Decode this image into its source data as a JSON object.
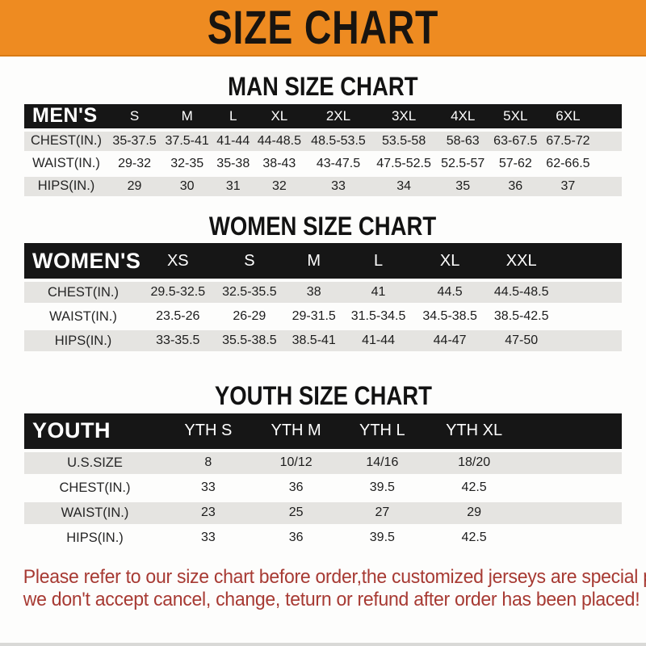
{
  "banner": {
    "title": "SIZE CHART"
  },
  "colors": {
    "banner_orange": "#ee8b21",
    "table_header_black": "#161616",
    "row_stripe_gray": "#e5e4e1",
    "footer_red": "#a73a33"
  },
  "sections": [
    {
      "heading": "MAN SIZE CHART",
      "table": {
        "label": "MEN'S",
        "columns": [
          "S",
          "M",
          "L",
          "XL",
          "2XL",
          "3XL",
          "4XL",
          "5XL",
          "6XL"
        ],
        "rows": [
          {
            "label": "CHEST(IN.)",
            "values": [
              "35-37.5",
              "37.5-41",
              "41-44",
              "44-48.5",
              "48.5-53.5",
              "53.5-58",
              "58-63",
              "63-67.5",
              "67.5-72"
            ]
          },
          {
            "label": "WAIST(IN.)",
            "values": [
              "29-32",
              "32-35",
              "35-38",
              "38-43",
              "43-47.5",
              "47.5-52.5",
              "52.5-57",
              "57-62",
              "62-66.5"
            ]
          },
          {
            "label": "HIPS(IN.)",
            "values": [
              "29",
              "30",
              "31",
              "32",
              "33",
              "34",
              "35",
              "36",
              "37"
            ]
          }
        ]
      }
    },
    {
      "heading": "WOMEN SIZE CHART",
      "table": {
        "label": "WOMEN'S",
        "columns": [
          "XS",
          "S",
          "M",
          "L",
          "XL",
          "XXL"
        ],
        "rows": [
          {
            "label": "CHEST(IN.)",
            "values": [
              "29.5-32.5",
              "32.5-35.5",
              "38",
              "41",
              "44.5",
              "44.5-48.5"
            ]
          },
          {
            "label": "WAIST(IN.)",
            "values": [
              "23.5-26",
              "26-29",
              "29-31.5",
              "31.5-34.5",
              "34.5-38.5",
              "38.5-42.5"
            ]
          },
          {
            "label": "HIPS(IN.)",
            "values": [
              "33-35.5",
              "35.5-38.5",
              "38.5-41",
              "41-44",
              "44-47",
              "47-50"
            ]
          }
        ]
      }
    },
    {
      "heading": "YOUTH SIZE CHART",
      "table": {
        "label": "YOUTH",
        "columns": [
          "YTH S",
          "YTH M",
          "YTH L",
          "YTH XL"
        ],
        "rows": [
          {
            "label": "U.S.SIZE",
            "values": [
              "8",
              "10/12",
              "14/16",
              "18/20"
            ]
          },
          {
            "label": "CHEST(IN.)",
            "values": [
              "33",
              "36",
              "39.5",
              "42.5"
            ]
          },
          {
            "label": "WAIST(IN.)",
            "values": [
              "23",
              "25",
              "27",
              "29"
            ]
          },
          {
            "label": "HIPS(IN.)",
            "values": [
              "33",
              "36",
              "39.5",
              "42.5"
            ]
          }
        ]
      }
    }
  ],
  "footer": {
    "line1": "Please refer to our size chart before order,the customized jerseys are special products,",
    "line2": "we don't accept cancel, change, teturn or refund after order has been placed!"
  }
}
